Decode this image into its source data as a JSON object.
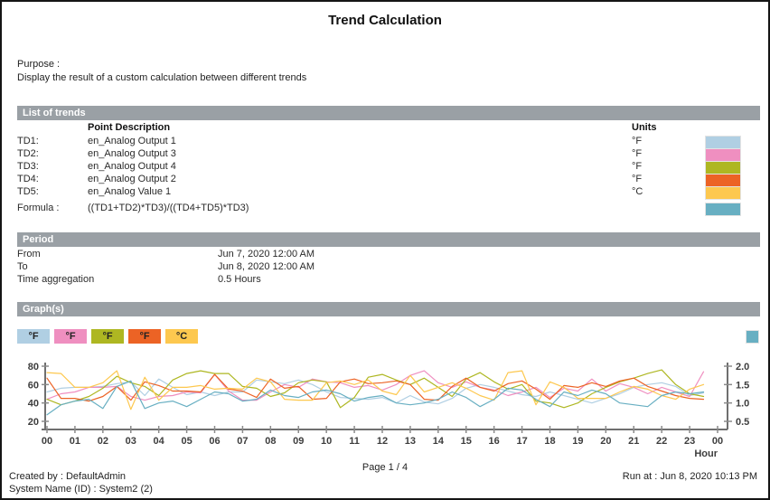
{
  "title": "Trend Calculation",
  "purpose": {
    "label": "Purpose :",
    "text": "Display the result of a custom calculation between different trends"
  },
  "sections": {
    "trends": "List of trends",
    "period": "Period",
    "graphs": "Graph(s)"
  },
  "trends_table": {
    "headers": {
      "point_description": "Point Description",
      "units": "Units"
    },
    "rows": [
      {
        "id": "TD1:",
        "description": "en_Analog Output 1",
        "unit": "°F",
        "color": "#b0cfe3"
      },
      {
        "id": "TD2:",
        "description": "en_Analog Output 3",
        "unit": "°F",
        "color": "#ef8fc0"
      },
      {
        "id": "TD3:",
        "description": "en_Analog Output 4",
        "unit": "°F",
        "color": "#aeb722"
      },
      {
        "id": "TD4:",
        "description": "en_Analog Output 2",
        "unit": "°F",
        "color": "#ec6325"
      },
      {
        "id": "TD5:",
        "description": "en_Analog Value 1",
        "unit": "°C",
        "color": "#fdc84f"
      }
    ],
    "formula": {
      "label": "Formula :",
      "expression": "((TD1+TD2)*TD3)/((TD4+TD5)*TD3)",
      "color": "#68afc2"
    }
  },
  "period": {
    "rows": [
      {
        "label": "From",
        "value": "Jun 7, 2020 12:00 AM"
      },
      {
        "label": "To",
        "value": "Jun 8, 2020 12:00 AM"
      },
      {
        "label": "Time aggregation",
        "value": "0.5 Hours"
      }
    ]
  },
  "legend": {
    "items": [
      {
        "label": "°F",
        "color": "#b0cfe3"
      },
      {
        "label": "°F",
        "color": "#ef8fc0"
      },
      {
        "label": "°F",
        "color": "#aeb722"
      },
      {
        "label": "°F",
        "color": "#ec6325"
      },
      {
        "label": "°C",
        "color": "#fdc84f"
      }
    ],
    "formula_color": "#68afc2"
  },
  "chart_data": {
    "type": "line",
    "xlabel": "Hour",
    "x_step": 0.5,
    "x_span": 24,
    "x_ticks": [
      "00",
      "01",
      "02",
      "03",
      "04",
      "05",
      "06",
      "07",
      "08",
      "09",
      "10",
      "11",
      "12",
      "13",
      "14",
      "15",
      "16",
      "17",
      "18",
      "19",
      "20",
      "21",
      "22",
      "23",
      "00"
    ],
    "left_axis": {
      "min": 20,
      "max": 80,
      "ticks": [
        80,
        60,
        40,
        20
      ]
    },
    "right_axis": {
      "min": 0.5,
      "max": 2.0,
      "ticks": [
        "2.0",
        "1.5",
        "1.0",
        "0.5"
      ]
    },
    "grid": false,
    "legend_position": "top-left",
    "series": [
      {
        "name": "TD1 en_Analog Output 1 (°F)",
        "axis": "left",
        "color": "#b0cfe3",
        "values": [
          52,
          56,
          57,
          57,
          58,
          61,
          63,
          48,
          66,
          57,
          49,
          52,
          48,
          52,
          52,
          65,
          63,
          61,
          65,
          60,
          52,
          46,
          45,
          44,
          46,
          40,
          48,
          41,
          39,
          45,
          56,
          60,
          57,
          53,
          49,
          47,
          52,
          48,
          44,
          40,
          45,
          50,
          57,
          60,
          62,
          58,
          48,
          51
        ]
      },
      {
        "name": "TD2 en_Analog Output 3 (°F)",
        "axis": "left",
        "color": "#ef8fc0",
        "values": [
          44,
          50,
          52,
          57,
          57,
          58,
          47,
          43,
          47,
          48,
          52,
          51,
          71,
          53,
          43,
          43,
          52,
          60,
          57,
          66,
          63,
          62,
          57,
          59,
          54,
          60,
          70,
          75,
          62,
          57,
          63,
          57,
          54,
          48,
          52,
          57,
          46,
          56,
          53,
          66,
          53,
          61,
          57,
          50,
          57,
          52,
          47,
          74
        ]
      },
      {
        "name": "TD3 en_Analog Output 4 (°F)",
        "axis": "left",
        "color": "#aeb722",
        "values": [
          44,
          38,
          42,
          47,
          56,
          69,
          62,
          58,
          48,
          65,
          72,
          75,
          72,
          72,
          58,
          56,
          47,
          51,
          62,
          65,
          63,
          35,
          46,
          68,
          71,
          65,
          60,
          67,
          57,
          47,
          66,
          73,
          63,
          55,
          60,
          42,
          40,
          35,
          40,
          50,
          57,
          63,
          67,
          72,
          76,
          60,
          50,
          47
        ]
      },
      {
        "name": "TD4 en_Analog Output 2 (°F)",
        "axis": "left",
        "color": "#ec6325",
        "values": [
          67,
          45,
          45,
          42,
          47,
          58,
          43,
          63,
          59,
          53,
          53,
          52,
          71,
          55,
          53,
          46,
          66,
          56,
          58,
          44,
          45,
          63,
          66,
          61,
          62,
          64,
          60,
          44,
          43,
          58,
          67,
          57,
          53,
          61,
          64,
          55,
          44,
          59,
          57,
          62,
          58,
          64,
          67,
          58,
          53,
          48,
          45,
          44
        ]
      },
      {
        "name": "TD5 en_Analog Value 1 (°C)",
        "axis": "left",
        "color": "#fdc84f",
        "values": [
          73,
          72,
          57,
          57,
          62,
          75,
          33,
          68,
          43,
          57,
          57,
          59,
          55,
          56,
          55,
          67,
          63,
          44,
          43,
          43,
          62,
          64,
          60,
          65,
          53,
          49,
          70,
          52,
          57,
          62,
          56,
          48,
          43,
          73,
          75,
          38,
          63,
          57,
          45,
          45,
          45,
          52,
          58,
          55,
          48,
          44,
          55,
          60
        ]
      },
      {
        "name": "Formula ((TD1+TD2)*TD3)/((TD4+TD5)*TD3)",
        "axis": "right",
        "color": "#68afc2",
        "values": [
          0.68,
          0.95,
          1.05,
          1.1,
          0.85,
          1.45,
          1.6,
          0.85,
          1.0,
          1.05,
          0.9,
          1.1,
          1.3,
          1.25,
          1.05,
          1.1,
          1.35,
          1.2,
          1.15,
          1.3,
          1.35,
          1.25,
          1.05,
          1.15,
          1.2,
          1.0,
          0.95,
          1.0,
          1.1,
          1.3,
          1.15,
          0.9,
          1.1,
          1.4,
          1.35,
          1.1,
          0.9,
          1.3,
          1.2,
          1.35,
          1.25,
          1.0,
          0.95,
          0.9,
          1.2,
          1.3,
          1.25,
          1.3
        ]
      }
    ]
  },
  "footer": {
    "page": "Page  1 / 4",
    "created_by": "Created by : DefaultAdmin",
    "system_name": "System Name (ID) : System2 (2)",
    "run_at": "Run at : Jun 8, 2020 10:13 PM"
  }
}
